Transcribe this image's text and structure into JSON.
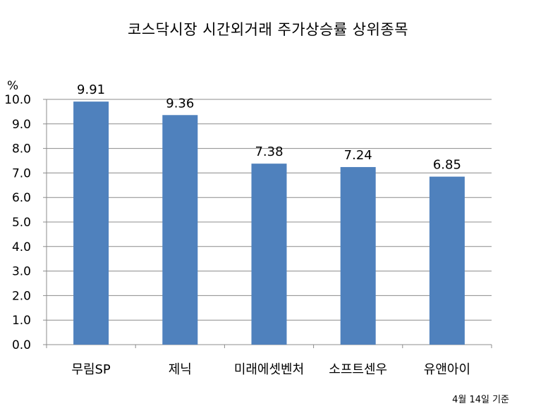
{
  "chart_data": {
    "type": "bar",
    "title": "코스닥시장 시간외거래  주가상승률 상위종목",
    "ylabel": "%",
    "categories": [
      "무림SP",
      "제닉",
      "미래에셋벤처",
      "소프트센우",
      "유앤아이"
    ],
    "values": [
      9.91,
      9.36,
      7.38,
      7.24,
      6.85
    ],
    "data_labels": [
      "9.91",
      "9.36",
      "7.38",
      "7.24",
      "6.85"
    ],
    "ylim": [
      0,
      10
    ],
    "yticks": [
      "0.0",
      "1.0",
      "2.0",
      "3.0",
      "4.0",
      "5.0",
      "6.0",
      "7.0",
      "8.0",
      "9.0",
      "10.0"
    ],
    "grid": true,
    "bar_color": "#4F81BD",
    "note": "4월 14일 기준"
  }
}
